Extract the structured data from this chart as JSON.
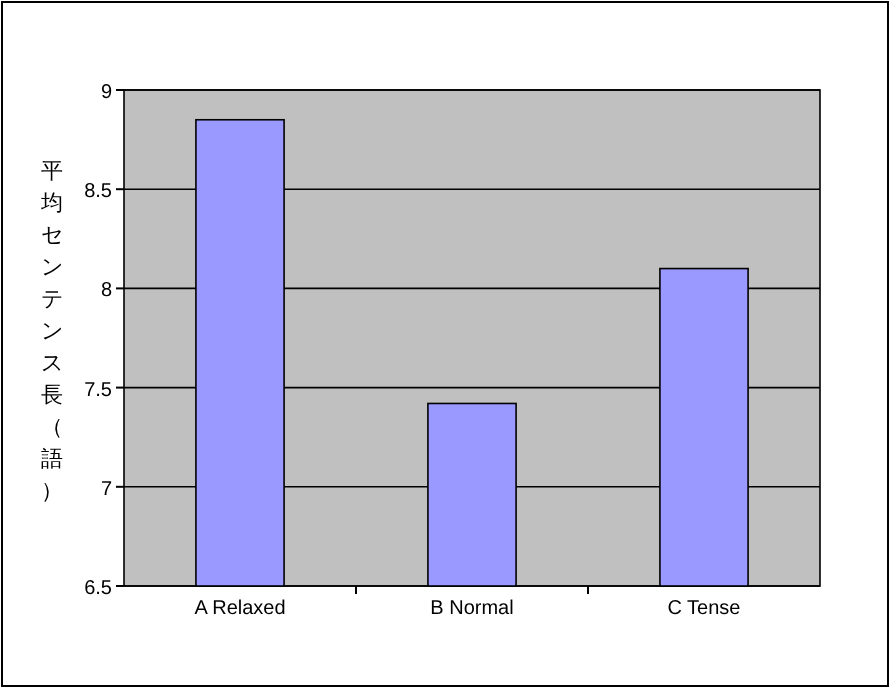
{
  "chart_data": {
    "type": "bar",
    "ylabel": "平均センテンス長（語）",
    "categories": [
      "A Relaxed",
      "B Normal",
      "C Tense"
    ],
    "values": [
      8.85,
      7.42,
      8.1
    ],
    "color": "#9999ff",
    "ylim": [
      6.5,
      9
    ],
    "yticks": [
      6.5,
      7,
      7.5,
      8,
      8.5,
      9
    ],
    "grid": "y"
  }
}
